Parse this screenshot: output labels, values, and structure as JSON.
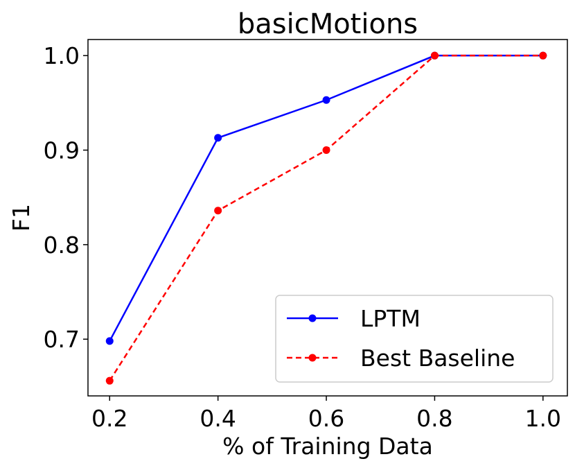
{
  "chart_data": {
    "type": "line",
    "title": "basicMotions",
    "xlabel": "% of Training Data",
    "ylabel": "F1",
    "xlim": [
      0.16,
      1.045
    ],
    "ylim": [
      0.64,
      1.017
    ],
    "x_ticks": [
      0.2,
      0.4,
      0.6,
      0.8,
      1.0
    ],
    "x_tick_labels": [
      "0.2",
      "0.4",
      "0.6",
      "0.8",
      "1.0"
    ],
    "y_ticks": [
      0.7,
      0.8,
      0.9,
      1.0
    ],
    "y_tick_labels": [
      "0.7",
      "0.8",
      "0.9",
      "1.0"
    ],
    "x": [
      0.2,
      0.4,
      0.6,
      0.8,
      1.0
    ],
    "series": [
      {
        "name": "LPTM",
        "values": [
          0.698,
          0.913,
          0.953,
          1.0,
          1.0
        ],
        "color": "#0000ff",
        "dashed": false
      },
      {
        "name": "Best Baseline",
        "values": [
          0.656,
          0.836,
          0.9,
          1.0,
          1.0
        ],
        "color": "#ff0000",
        "dashed": true
      }
    ],
    "legend_position": "lower-right",
    "grid": false
  }
}
